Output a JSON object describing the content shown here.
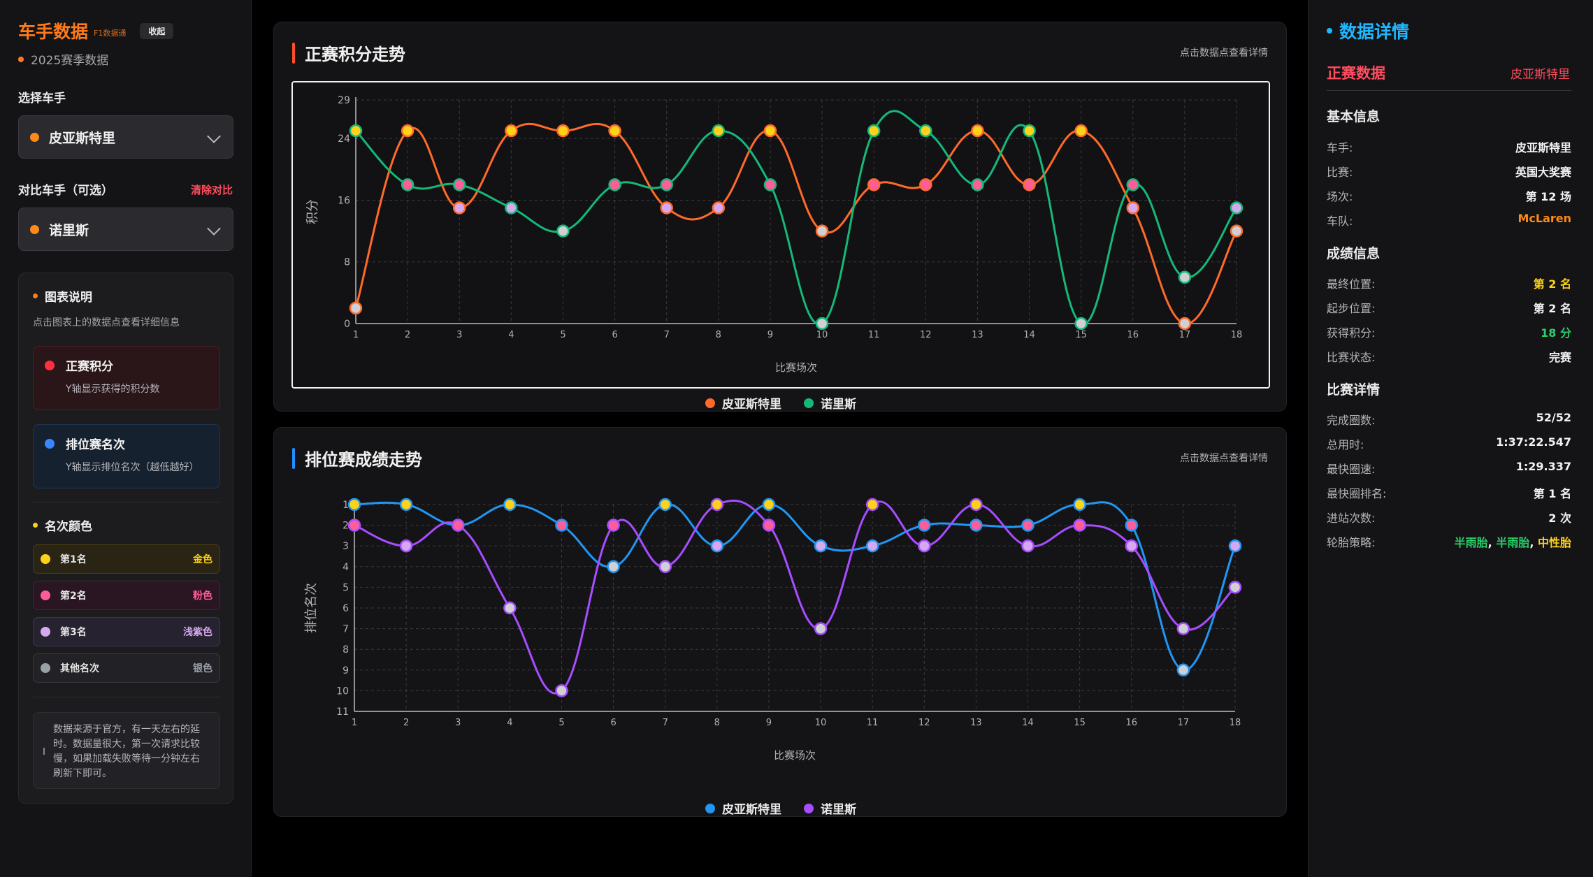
{
  "left": {
    "brand_title": "车手数据",
    "brand_tag": "F1数据通",
    "collapse_label": "收起",
    "season": "2025赛季数据",
    "select_driver_label": "选择车手",
    "driver": "皮亚斯特里",
    "compare_label": "对比车手（可选）",
    "clear_label": "清除对比",
    "compare_driver": "诺里斯",
    "legend_head": "图表说明",
    "legend_hint": "点击图表上的数据点查看详细信息",
    "race_points_title": "正赛积分",
    "race_points_desc": "Y轴显示获得的积分数",
    "quali_title": "排位赛名次",
    "quali_desc": "Y轴显示排位名次（越低越好）",
    "rank_colors_head": "名次颜色",
    "ranks": [
      {
        "name": "第1名",
        "color_name": "金色",
        "color": "#ffd21a"
      },
      {
        "name": "第2名",
        "color_name": "粉色",
        "color": "#ff5c9a"
      },
      {
        "name": "第3名",
        "color_name": "浅紫色",
        "color": "#d6a8f0"
      },
      {
        "name": "其他名次",
        "color_name": "银色",
        "color": "#9aa0a8"
      }
    ],
    "note": "数据来源于官方，有一天左右的延时。数据量很大，第一次请求比较慢，如果加载失败等待一分钟左右刷新下即可。"
  },
  "panels": {
    "race_title": "正赛积分走势",
    "quali_title": "排位赛成绩走势",
    "hint": "点击数据点查看详情",
    "legend_driver1": "皮亚斯特里",
    "legend_driver2": "诺里斯"
  },
  "chart_data": [
    {
      "type": "line",
      "title": "正赛积分走势",
      "xlabel": "比赛场次",
      "ylabel": "积分",
      "x": [
        1,
        2,
        3,
        4,
        5,
        6,
        7,
        8,
        9,
        10,
        11,
        12,
        13,
        14,
        15,
        16,
        17,
        18
      ],
      "yticks": [
        0,
        8,
        16,
        24,
        29
      ],
      "ylim": [
        0,
        29
      ],
      "grid": true,
      "legend": "bottom",
      "series": [
        {
          "name": "皮亚斯特里",
          "color": "#ff6a2a",
          "values": [
            2,
            25,
            15,
            25,
            25,
            25,
            15,
            15,
            25,
            12,
            18,
            18,
            25,
            18,
            25,
            15,
            0,
            12
          ]
        },
        {
          "name": "诺里斯",
          "color": "#14b97a",
          "values": [
            25,
            18,
            18,
            15,
            12,
            18,
            18,
            25,
            18,
            0,
            25,
            25,
            18,
            25,
            0,
            18,
            6,
            15
          ]
        }
      ]
    },
    {
      "type": "line",
      "title": "排位赛成绩走势",
      "xlabel": "比赛场次",
      "ylabel": "排位名次",
      "x": [
        1,
        2,
        3,
        4,
        5,
        6,
        7,
        8,
        9,
        10,
        11,
        12,
        13,
        14,
        15,
        16,
        17,
        18
      ],
      "yticks": [
        1,
        2,
        3,
        4,
        5,
        6,
        7,
        8,
        9,
        10,
        11
      ],
      "ylim": [
        11,
        1
      ],
      "inverted": true,
      "grid": true,
      "legend": "bottom",
      "series": [
        {
          "name": "皮亚斯特里",
          "color": "#2196f3",
          "values": [
            1,
            1,
            2,
            1,
            2,
            4,
            1,
            3,
            1,
            3,
            3,
            2,
            2,
            2,
            1,
            2,
            9,
            3
          ]
        },
        {
          "name": "诺里斯",
          "color": "#a64dff",
          "values": [
            2,
            3,
            2,
            6,
            10,
            2,
            4,
            1,
            2,
            7,
            1,
            3,
            1,
            3,
            2,
            3,
            7,
            5
          ]
        }
      ]
    }
  ],
  "right": {
    "title": "数据详情",
    "subtitle": "正赛数据",
    "subtitle_driver": "皮亚斯特里",
    "basic_head": "基本信息",
    "basic": [
      {
        "k": "车手:",
        "v": "皮亚斯特里",
        "color": "#f2f2f2"
      },
      {
        "k": "比赛:",
        "v": "英国大奖赛",
        "color": "#f2f2f2"
      },
      {
        "k": "场次:",
        "v": "第 12 场",
        "color": "#f2f2f2"
      },
      {
        "k": "车队:",
        "v": "McLaren",
        "color": "#ff8a1a"
      }
    ],
    "result_head": "成绩信息",
    "result": [
      {
        "k": "最终位置:",
        "v": "第 2 名",
        "color": "#ffd21a"
      },
      {
        "k": "起步位置:",
        "v": "第 2 名",
        "color": "#f2f2f2"
      },
      {
        "k": "获得积分:",
        "v": "18 分",
        "color": "#28d06a"
      },
      {
        "k": "比赛状态:",
        "v": "完赛",
        "color": "#f2f2f2"
      }
    ],
    "race_head": "比赛详情",
    "race": [
      {
        "k": "完成圈数:",
        "v": "52/52",
        "color": "#f2f2f2"
      },
      {
        "k": "总用时:",
        "v": "1:37:22.547",
        "color": "#f2f2f2"
      },
      {
        "k": "最快圈速:",
        "v": "1:29.337",
        "color": "#f2f2f2"
      },
      {
        "k": "最快圈排名:",
        "v": "第 1 名",
        "color": "#f2f2f2"
      },
      {
        "k": "进站次数:",
        "v": "2 次",
        "color": "#f2f2f2"
      },
      {
        "k": "轮胎策略:",
        "v": "",
        "color": "#f2f2f2"
      }
    ],
    "tyres": [
      {
        "text": "半雨胎",
        "color": "#28d06a"
      },
      {
        "text": ", ",
        "color": "#f2f2f2"
      },
      {
        "text": "半雨胎",
        "color": "#28d06a"
      },
      {
        "text": ", ",
        "color": "#f2f2f2"
      },
      {
        "text": "中性胎",
        "color": "#ffd21a"
      }
    ]
  }
}
